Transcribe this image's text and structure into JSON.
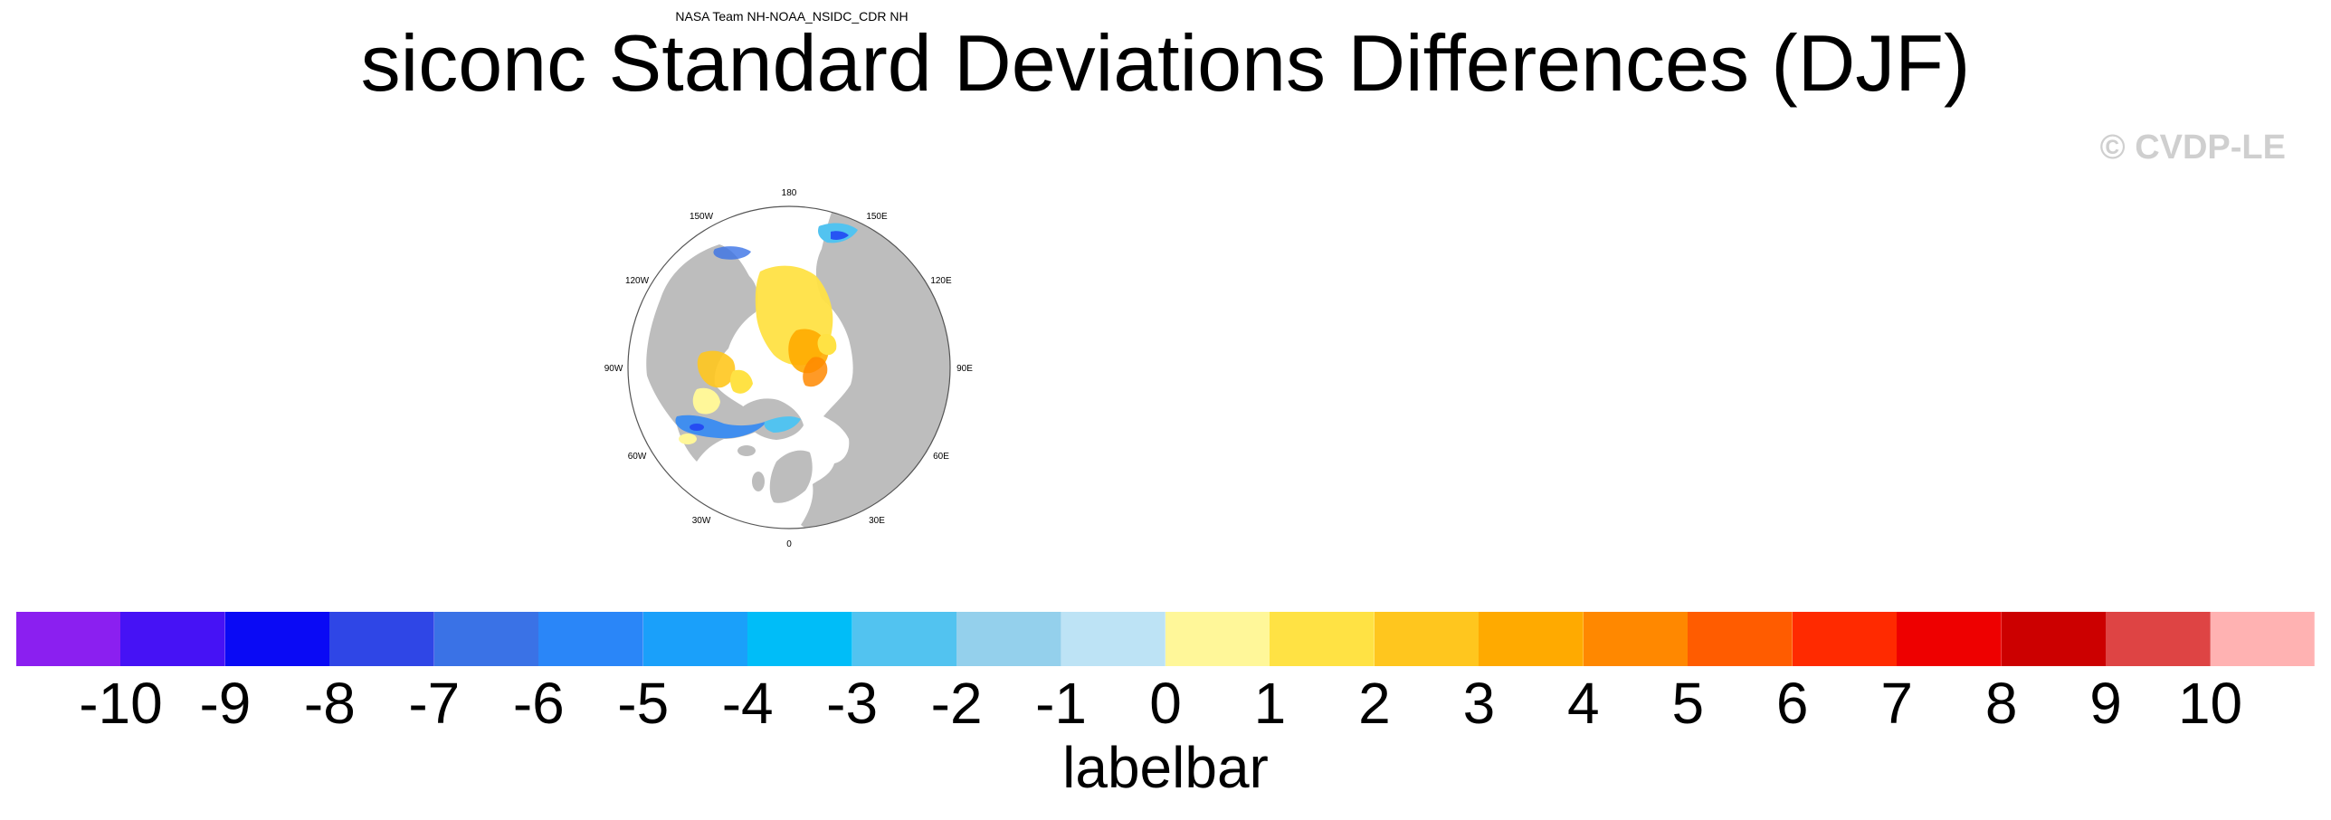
{
  "title": "siconc Standard Deviations Differences (DJF)",
  "watermark": "© CVDP-LE",
  "panel": {
    "title": "NASA Team NH-NOAA_NSIDC_CDR NH",
    "lon_labels": [
      "180",
      "150E",
      "120E",
      "90E",
      "60E",
      "30E",
      "0",
      "30W",
      "60W",
      "90W",
      "120W",
      "150W"
    ]
  },
  "labelbar": {
    "title": "labelbar",
    "ticks": [
      "-10",
      "-9",
      "-8",
      "-7",
      "-6",
      "-5",
      "-4",
      "-3",
      "-2",
      "-1",
      "0",
      "1",
      "2",
      "3",
      "4",
      "5",
      "6",
      "7",
      "8",
      "9",
      "10"
    ],
    "colors": [
      "#8b1ff0",
      "#4612f5",
      "#0a0af5",
      "#2f46e6",
      "#3a72e6",
      "#2a86f8",
      "#1aa0fa",
      "#00bdf8",
      "#52c3f0",
      "#94d0ec",
      "#bde3f5",
      "#fff799",
      "#ffe244",
      "#ffc61e",
      "#ffaa00",
      "#ff8800",
      "#ff5c00",
      "#ff2a00",
      "#ee0000",
      "#cc0000",
      "#de4444",
      "#ffb2b2"
    ]
  },
  "map": {
    "land_color": "#bdbdbd",
    "ocean_color": "#ffffff"
  }
}
